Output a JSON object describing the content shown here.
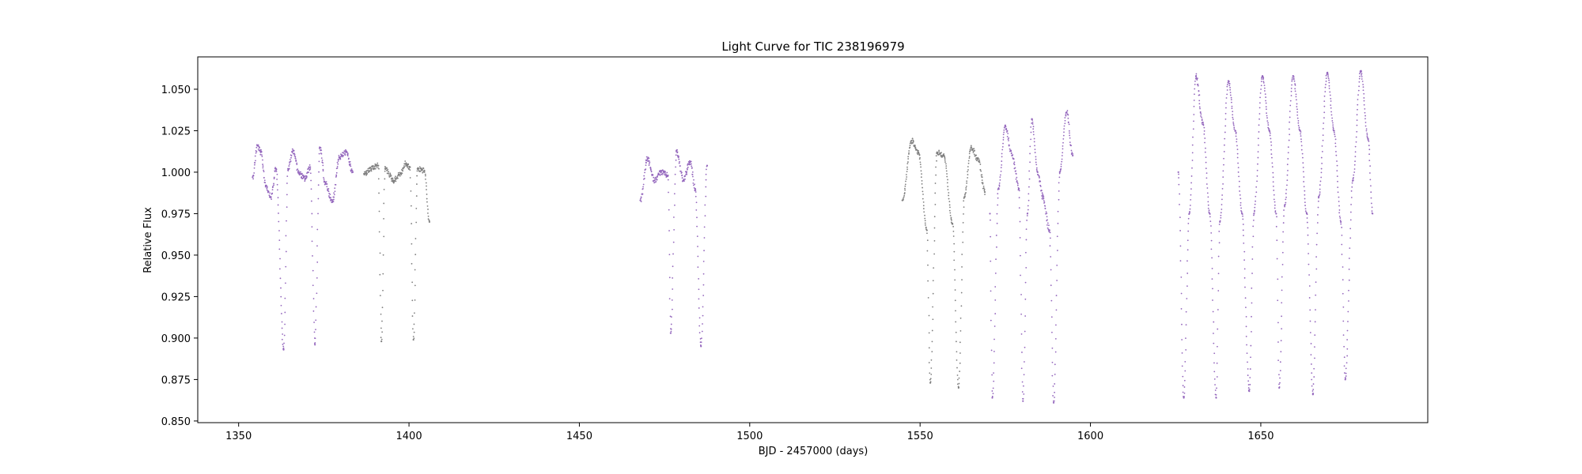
{
  "chart_data": {
    "type": "scatter",
    "title": "Light Curve for TIC 238196979",
    "xlabel": "BJD - 2457000 (days)",
    "ylabel": "Relative Flux",
    "xlim": [
      1338,
      1699
    ],
    "ylim": [
      0.849,
      1.0695
    ],
    "xticks": [
      1350,
      1400,
      1450,
      1500,
      1550,
      1600,
      1650
    ],
    "xtick_labels": [
      "1350",
      "1400",
      "1450",
      "1500",
      "1550",
      "1600",
      "1650"
    ],
    "yticks": [
      0.85,
      0.875,
      0.9,
      0.925,
      0.95,
      0.975,
      1.0,
      1.025,
      1.05
    ],
    "ytick_labels": [
      "0.850",
      "0.875",
      "0.900",
      "0.925",
      "0.950",
      "0.975",
      "1.000",
      "1.025",
      "1.050"
    ],
    "grid": false,
    "series_colors": {
      "odd_sectors": "#9467bd",
      "even_sectors": "#7f7f7f"
    },
    "series": [
      {
        "color": "#9467bd",
        "x": [
          1354.1,
          1355.5,
          1356.5,
          1358,
          1359.5,
          1361,
          1363.2,
          1364.5,
          1366,
          1367.8,
          1369.5,
          1371,
          1372.4,
          1373.8,
          1375.5,
          1377.5,
          1379.5,
          1381.5,
          1383.5
        ],
        "y": [
          0.997,
          1.016,
          1.012,
          0.992,
          0.985,
          1.002,
          0.893,
          1.002,
          1.013,
          0.999,
          0.996,
          1.003,
          0.896,
          1.015,
          0.993,
          0.982,
          1.009,
          1.012,
          1.0
        ],
        "x_range": [
          1354.1,
          1383.8
        ]
      },
      {
        "color": "#7f7f7f",
        "x": [
          1386.8,
          1389,
          1391,
          1391.9,
          1393,
          1395.5,
          1397.5,
          1399,
          1400.3,
          1401.3,
          1402.5,
          1404.5,
          1406
        ],
        "y": [
          0.999,
          1.002,
          1.004,
          0.898,
          1.002,
          0.995,
          0.999,
          1.005,
          1.003,
          0.899,
          1.002,
          1.001,
          0.97
        ],
        "x_range": [
          1386.8,
          1406.2
        ]
      },
      {
        "color": "#9467bd",
        "x": [
          1467.9,
          1470,
          1472,
          1474,
          1476,
          1476.8,
          1478.5,
          1480.5,
          1482.5,
          1484,
          1485.7,
          1487.5
        ],
        "y": [
          0.983,
          1.008,
          0.995,
          1.0,
          0.998,
          0.903,
          1.013,
          0.995,
          1.006,
          0.99,
          0.895,
          1.004
        ],
        "x_range": [
          1467.9,
          1488.3
        ]
      },
      {
        "color": "#7f7f7f",
        "x": [
          1544.8,
          1547.5,
          1549.5,
          1552,
          1553,
          1555,
          1557,
          1559.5,
          1561.3,
          1563,
          1565,
          1567,
          1569
        ],
        "y": [
          0.983,
          1.019,
          1.012,
          0.965,
          0.873,
          1.012,
          1.01,
          0.969,
          0.87,
          0.985,
          1.015,
          1.008,
          0.988
        ],
        "x_range": [
          1544.8,
          1569.3
        ]
      },
      {
        "color": "#9467bd",
        "x": [
          1570.5,
          1571.2,
          1573,
          1575,
          1577,
          1579,
          1580.2,
          1581.5,
          1582.8,
          1584.5,
          1586,
          1588,
          1589.2,
          1591,
          1593,
          1594.8
        ],
        "y": [
          0.975,
          0.864,
          0.99,
          1.028,
          1.01,
          0.99,
          0.862,
          0.975,
          1.032,
          1.0,
          0.985,
          0.965,
          0.861,
          1.0,
          1.036,
          1.01
        ],
        "x_range": [
          1570.5,
          1595.5
        ]
      },
      {
        "color": "#9467bd",
        "x": [
          1625.8,
          1627.4,
          1629,
          1631,
          1633,
          1635,
          1636.9,
          1638,
          1640.5,
          1642.5,
          1644.5,
          1646.6,
          1648,
          1650.5,
          1652.5,
          1654.5,
          1655.4,
          1657,
          1659.5,
          1661.5,
          1663.5,
          1665.3,
          1667,
          1669.5,
          1671.5,
          1673.5,
          1674.8,
          1677,
          1679.3,
          1681.5,
          1682.8
        ],
        "y": [
          1.0,
          0.864,
          0.975,
          1.058,
          1.03,
          0.975,
          0.864,
          0.97,
          1.055,
          1.025,
          0.975,
          0.868,
          0.975,
          1.058,
          1.025,
          0.975,
          0.87,
          0.98,
          1.058,
          1.025,
          0.975,
          0.866,
          0.985,
          1.06,
          1.025,
          0.97,
          0.875,
          0.995,
          1.061,
          1.02,
          0.975
        ],
        "x_range": [
          1625.8,
          1682.8
        ]
      }
    ]
  }
}
